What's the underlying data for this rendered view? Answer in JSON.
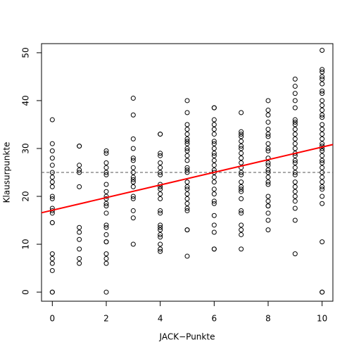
{
  "chart_data": {
    "type": "scatter",
    "x_label": "JACK−Punkte",
    "y_label": "Klausurpunkte",
    "xlim": [
      -0.4,
      10.4
    ],
    "ylim": [
      -1.9,
      51.9
    ],
    "xticks": [
      0,
      2,
      4,
      6,
      8,
      10
    ],
    "yticks": [
      0,
      10,
      20,
      30,
      40,
      50
    ],
    "point_color": "#000000",
    "x": [
      0,
      0,
      0,
      0,
      0,
      0,
      0,
      0,
      0,
      0,
      0,
      0,
      0,
      0,
      0,
      0,
      0,
      0,
      0,
      0,
      0,
      0,
      1,
      1,
      1,
      1,
      1,
      1,
      1,
      1,
      1,
      1,
      1,
      1,
      2,
      2,
      2,
      2,
      2,
      2,
      2,
      2,
      2,
      2,
      2,
      2,
      2,
      2,
      2,
      2,
      2,
      2,
      2,
      2,
      2,
      2,
      3,
      3,
      3,
      3,
      3,
      3,
      3,
      3,
      3,
      3,
      3,
      3,
      3,
      3,
      3,
      3,
      3,
      4,
      4,
      4,
      4,
      4,
      4,
      4,
      4,
      4,
      4,
      4,
      4,
      4,
      4,
      4,
      4,
      4,
      4,
      4,
      4,
      4,
      4,
      4,
      5,
      5,
      5,
      5,
      5,
      5,
      5,
      5,
      5,
      5,
      5,
      5,
      5,
      5,
      5,
      5,
      5,
      5,
      5,
      5,
      5,
      5,
      5,
      5,
      5,
      5,
      6,
      6,
      6,
      6,
      6,
      6,
      6,
      6,
      6,
      6,
      6,
      6,
      6,
      6,
      6,
      6,
      6,
      6,
      6,
      6,
      6,
      6,
      6,
      6,
      6,
      6,
      7,
      7,
      7,
      7,
      7,
      7,
      7,
      7,
      7,
      7,
      7,
      7,
      7,
      7,
      7,
      7,
      7,
      7,
      7,
      7,
      7,
      7,
      7,
      7,
      8,
      8,
      8,
      8,
      8,
      8,
      8,
      8,
      8,
      8,
      8,
      8,
      8,
      8,
      8,
      8,
      8,
      8,
      8,
      8,
      8,
      8,
      8,
      8,
      8,
      9,
      9,
      9,
      9,
      9,
      9,
      9,
      9,
      9,
      9,
      9,
      9,
      9,
      9,
      9,
      9,
      9,
      9,
      9,
      9,
      9,
      9,
      9,
      9,
      9,
      9,
      9,
      9,
      10,
      10,
      10,
      10,
      10,
      10,
      10,
      10,
      10,
      10,
      10,
      10,
      10,
      10,
      10,
      10,
      10,
      10,
      10,
      10,
      10,
      10,
      10,
      10,
      10,
      10,
      10,
      10,
      10,
      10,
      10,
      10,
      10,
      10,
      10
    ],
    "y": [
      36,
      31,
      29.5,
      28,
      26.5,
      25,
      24,
      23,
      22,
      20,
      19.5,
      17.5,
      17,
      16.5,
      14.5,
      14.5,
      8,
      7,
      6,
      4.5,
      0,
      0,
      30.5,
      30.5,
      26.5,
      25.5,
      25,
      22,
      13.5,
      12.5,
      11,
      9,
      7,
      6,
      29.5,
      29,
      27,
      26,
      25,
      24.5,
      22.5,
      21,
      20,
      19.5,
      18.5,
      18,
      16.5,
      14,
      13.5,
      12,
      10.5,
      10.5,
      8,
      7,
      6,
      0,
      40.5,
      37,
      32,
      30,
      28,
      27.5,
      26,
      25,
      24,
      23.5,
      23,
      22,
      20,
      19.5,
      17,
      15.5,
      10,
      33,
      33,
      29,
      28.5,
      27,
      26,
      25,
      24.5,
      22.5,
      22,
      21.5,
      20.5,
      19.5,
      17,
      16.5,
      14,
      13.5,
      13,
      12,
      11.5,
      10,
      9,
      8.5,
      40,
      37.5,
      35,
      34,
      33,
      32,
      31.5,
      31,
      30,
      29.5,
      28.5,
      27.5,
      26,
      25.5,
      25,
      23,
      22,
      21.5,
      20.5,
      19.5,
      18.5,
      17.5,
      17,
      13,
      13,
      7.5,
      38.5,
      38.5,
      36,
      35,
      34,
      33,
      31.5,
      31,
      30,
      29,
      28.5,
      27.5,
      26.5,
      25.5,
      25,
      24,
      23,
      21.5,
      20.5,
      19,
      18.5,
      16,
      14,
      12.5,
      9,
      9,
      37.5,
      33.5,
      33,
      32.5,
      31.5,
      30.5,
      30,
      29,
      28,
      27,
      26,
      25,
      24.5,
      23,
      22,
      21.5,
      21,
      19.5,
      17,
      16.5,
      14,
      13,
      12,
      9,
      40,
      38,
      37,
      35.5,
      34,
      33,
      32.5,
      31,
      30,
      29.5,
      28,
      27,
      26.5,
      25.5,
      25,
      24,
      23,
      22.5,
      20,
      19,
      18,
      18,
      16.5,
      15,
      13,
      44.5,
      43,
      41.5,
      40,
      38.5,
      36,
      35.5,
      35,
      34,
      33,
      32,
      31,
      30,
      29,
      28.5,
      27.5,
      27,
      26,
      25,
      24.5,
      23,
      22,
      21,
      20,
      19,
      17.5,
      15,
      8,
      50.5,
      46.5,
      46,
      45,
      44.5,
      43.5,
      42,
      41.5,
      40,
      39,
      38,
      37,
      36.5,
      35,
      34,
      33,
      32,
      31,
      30.5,
      30,
      29.5,
      28.5,
      27.5,
      27,
      26,
      25,
      24,
      23,
      22,
      21.5,
      20,
      18.5,
      10.5,
      0,
      0
    ],
    "fit_line": {
      "intercept": 17.1,
      "slope": 1.32,
      "color": "#ff0000"
    },
    "hline": {
      "value": 25,
      "style": "dashed",
      "color": "#555555"
    }
  }
}
